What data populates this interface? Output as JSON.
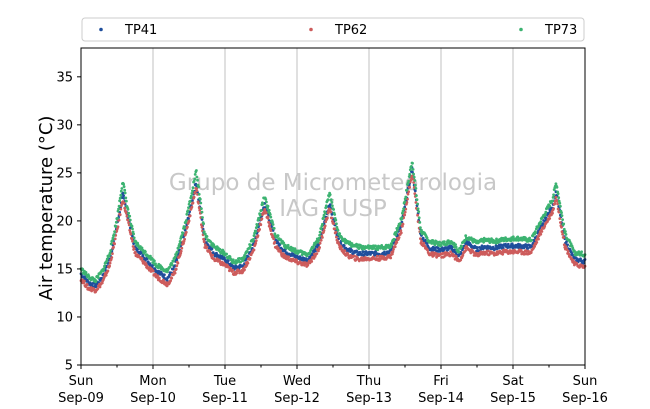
{
  "chart_data": {
    "type": "scatter",
    "ylabel": "Air temperature (°C)",
    "ylim": [
      5,
      38
    ],
    "yticks": [
      5,
      10,
      15,
      20,
      25,
      30,
      35
    ],
    "xlim": [
      0,
      7
    ],
    "x_unit": "days since Sun Sep-09 00:00",
    "xticks": [
      {
        "x": 0,
        "day": "Sun",
        "date": "Sep-09"
      },
      {
        "x": 1,
        "day": "Mon",
        "date": "Sep-10"
      },
      {
        "x": 2,
        "day": "Tue",
        "date": "Sep-11"
      },
      {
        "x": 3,
        "day": "Wed",
        "date": "Sep-12"
      },
      {
        "x": 4,
        "day": "Thu",
        "date": "Sep-13"
      },
      {
        "x": 5,
        "day": "Fri",
        "date": "Sep-14"
      },
      {
        "x": 6,
        "day": "Sat",
        "date": "Sep-15"
      },
      {
        "x": 7,
        "day": "Sun",
        "date": "Sep-16"
      }
    ],
    "grid": "vertical",
    "legend_position": "top",
    "watermark": [
      "Grupo de Micrometeorologia",
      "IAG / USP"
    ],
    "series": [
      {
        "name": "TP41",
        "color": "#1f4e9c",
        "points": [
          [
            0.0,
            14.5
          ],
          [
            0.1,
            13.6
          ],
          [
            0.2,
            13.2
          ],
          [
            0.3,
            14.2
          ],
          [
            0.4,
            16.0
          ],
          [
            0.5,
            19.5
          ],
          [
            0.58,
            22.8
          ],
          [
            0.65,
            20.5
          ],
          [
            0.75,
            17.2
          ],
          [
            0.85,
            16.5
          ],
          [
            0.95,
            15.6
          ],
          [
            1.05,
            14.8
          ],
          [
            1.2,
            14.0
          ],
          [
            1.3,
            15.2
          ],
          [
            1.45,
            19.0
          ],
          [
            1.6,
            24.0
          ],
          [
            1.72,
            18.0
          ],
          [
            1.85,
            16.6
          ],
          [
            2.0,
            16.0
          ],
          [
            2.12,
            15.1
          ],
          [
            2.25,
            15.3
          ],
          [
            2.4,
            17.5
          ],
          [
            2.55,
            21.8
          ],
          [
            2.7,
            18.0
          ],
          [
            2.82,
            16.9
          ],
          [
            3.0,
            16.2
          ],
          [
            3.15,
            15.9
          ],
          [
            3.3,
            17.5
          ],
          [
            3.45,
            21.8
          ],
          [
            3.58,
            18.0
          ],
          [
            3.7,
            17.0
          ],
          [
            3.85,
            16.6
          ],
          [
            4.0,
            16.6
          ],
          [
            4.15,
            16.6
          ],
          [
            4.3,
            16.8
          ],
          [
            4.45,
            19.5
          ],
          [
            4.6,
            25.5
          ],
          [
            4.72,
            18.5
          ],
          [
            4.85,
            17.1
          ],
          [
            5.0,
            17.0
          ],
          [
            5.15,
            17.2
          ],
          [
            5.25,
            16.3
          ],
          [
            5.35,
            17.8
          ],
          [
            5.5,
            17.0
          ],
          [
            5.6,
            17.3
          ],
          [
            5.75,
            17.2
          ],
          [
            5.9,
            17.4
          ],
          [
            6.05,
            17.4
          ],
          [
            6.25,
            17.3
          ],
          [
            6.4,
            19.5
          ],
          [
            6.55,
            21.5
          ],
          [
            6.6,
            23.0
          ],
          [
            6.72,
            18.0
          ],
          [
            6.85,
            16.0
          ],
          [
            7.0,
            15.8
          ]
        ]
      },
      {
        "name": "TP62",
        "color": "#cd5c5c",
        "points": [
          [
            0.0,
            14.0
          ],
          [
            0.1,
            13.0
          ],
          [
            0.2,
            12.8
          ],
          [
            0.3,
            13.6
          ],
          [
            0.4,
            15.4
          ],
          [
            0.5,
            19.0
          ],
          [
            0.58,
            22.3
          ],
          [
            0.65,
            20.0
          ],
          [
            0.75,
            16.6
          ],
          [
            0.85,
            15.9
          ],
          [
            0.95,
            15.0
          ],
          [
            1.05,
            14.2
          ],
          [
            1.2,
            13.4
          ],
          [
            1.3,
            14.6
          ],
          [
            1.45,
            18.5
          ],
          [
            1.6,
            23.5
          ],
          [
            1.72,
            17.4
          ],
          [
            1.85,
            16.0
          ],
          [
            2.0,
            15.4
          ],
          [
            2.12,
            14.6
          ],
          [
            2.25,
            14.8
          ],
          [
            2.4,
            17.0
          ],
          [
            2.55,
            21.3
          ],
          [
            2.7,
            17.4
          ],
          [
            2.82,
            16.3
          ],
          [
            3.0,
            15.7
          ],
          [
            3.15,
            15.4
          ],
          [
            3.3,
            17.0
          ],
          [
            3.45,
            21.3
          ],
          [
            3.58,
            17.4
          ],
          [
            3.7,
            16.4
          ],
          [
            3.85,
            16.0
          ],
          [
            4.0,
            16.1
          ],
          [
            4.15,
            16.1
          ],
          [
            4.3,
            16.3
          ],
          [
            4.45,
            19.0
          ],
          [
            4.6,
            25.0
          ],
          [
            4.72,
            17.9
          ],
          [
            4.85,
            16.5
          ],
          [
            5.0,
            16.4
          ],
          [
            5.15,
            16.6
          ],
          [
            5.25,
            15.8
          ],
          [
            5.35,
            17.2
          ],
          [
            5.5,
            16.4
          ],
          [
            5.6,
            16.7
          ],
          [
            5.75,
            16.6
          ],
          [
            5.9,
            16.8
          ],
          [
            6.05,
            16.8
          ],
          [
            6.25,
            16.7
          ],
          [
            6.4,
            19.0
          ],
          [
            6.55,
            21.0
          ],
          [
            6.6,
            22.5
          ],
          [
            6.72,
            17.4
          ],
          [
            6.85,
            15.5
          ],
          [
            7.0,
            15.2
          ]
        ]
      },
      {
        "name": "TP73",
        "color": "#3cb371",
        "points": [
          [
            0.0,
            15.0
          ],
          [
            0.1,
            14.2
          ],
          [
            0.2,
            13.8
          ],
          [
            0.3,
            14.8
          ],
          [
            0.4,
            16.7
          ],
          [
            0.5,
            20.2
          ],
          [
            0.58,
            24.2
          ],
          [
            0.65,
            21.2
          ],
          [
            0.75,
            17.8
          ],
          [
            0.85,
            17.0
          ],
          [
            0.95,
            16.3
          ],
          [
            1.05,
            15.4
          ],
          [
            1.2,
            14.8
          ],
          [
            1.3,
            16.0
          ],
          [
            1.45,
            19.8
          ],
          [
            1.6,
            25.2
          ],
          [
            1.72,
            18.6
          ],
          [
            1.85,
            17.3
          ],
          [
            2.0,
            16.6
          ],
          [
            2.12,
            15.7
          ],
          [
            2.25,
            16.0
          ],
          [
            2.4,
            18.2
          ],
          [
            2.55,
            22.6
          ],
          [
            2.7,
            18.6
          ],
          [
            2.82,
            17.5
          ],
          [
            3.0,
            16.8
          ],
          [
            3.15,
            16.5
          ],
          [
            3.3,
            18.1
          ],
          [
            3.45,
            22.9
          ],
          [
            3.58,
            18.6
          ],
          [
            3.7,
            17.7
          ],
          [
            3.85,
            17.3
          ],
          [
            4.0,
            17.2
          ],
          [
            4.15,
            17.2
          ],
          [
            4.3,
            17.4
          ],
          [
            4.45,
            20.2
          ],
          [
            4.6,
            26.3
          ],
          [
            4.72,
            19.0
          ],
          [
            4.85,
            17.8
          ],
          [
            5.0,
            17.6
          ],
          [
            5.15,
            17.9
          ],
          [
            5.25,
            16.8
          ],
          [
            5.35,
            18.4
          ],
          [
            5.5,
            17.7
          ],
          [
            5.6,
            18.0
          ],
          [
            5.75,
            17.9
          ],
          [
            5.9,
            18.1
          ],
          [
            6.05,
            18.2
          ],
          [
            6.25,
            18.0
          ],
          [
            6.4,
            20.2
          ],
          [
            6.55,
            22.3
          ],
          [
            6.6,
            24.0
          ],
          [
            6.72,
            18.8
          ],
          [
            6.85,
            16.7
          ],
          [
            7.0,
            16.5
          ]
        ]
      }
    ]
  }
}
